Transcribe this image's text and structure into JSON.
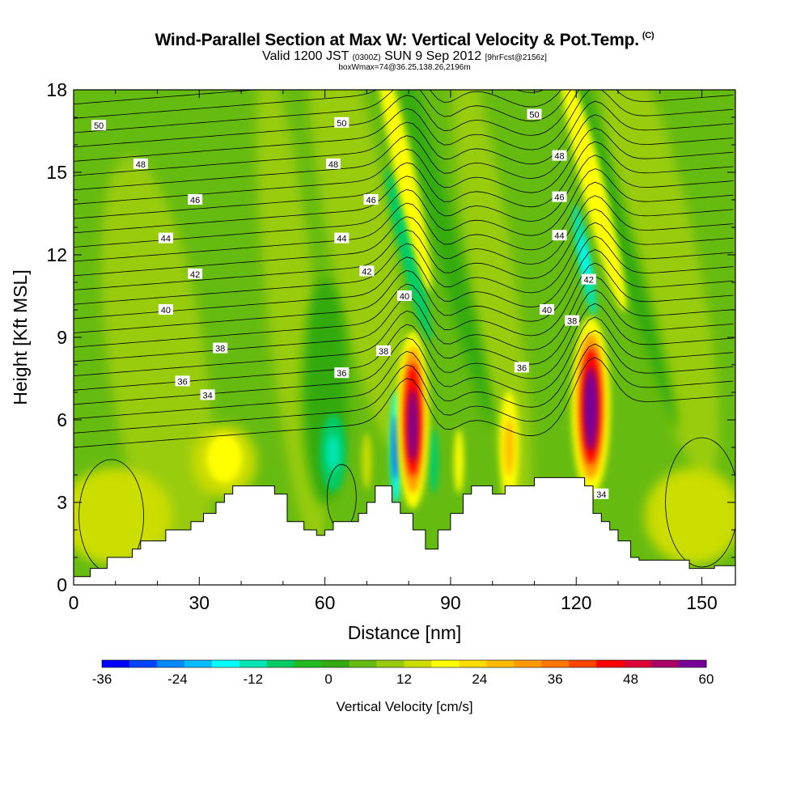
{
  "title": "Wind-Parallel Section at Max W: Vertical Velocity & Pot.Temp.",
  "title_mark": "(C)",
  "subtitle_parts": [
    "Valid 1200 JST",
    "(0300Z)",
    "SUN 9 Sep 2012",
    "[9hrFcst@2156z]"
  ],
  "subtitle2": "boxWmax=74@36.25,138.26,2196m",
  "chart_data": {
    "type": "heatmap",
    "xlabel": "Distance [nm]",
    "ylabel": "Height [Kft MSL]",
    "xlim": [
      0,
      158
    ],
    "ylim": [
      0,
      18
    ],
    "x_ticks": [
      0,
      30,
      60,
      90,
      120,
      150
    ],
    "y_ticks": [
      0,
      3,
      6,
      9,
      12,
      15,
      18
    ],
    "colorbar": {
      "label": "Vertical Velocity [cm/s]",
      "min": -36,
      "max": 60,
      "step": 4,
      "tick_labels": [
        -36,
        -24,
        -12,
        0,
        12,
        24,
        36,
        48,
        60
      ],
      "colors": [
        "#0000ff",
        "#0044ff",
        "#0088ff",
        "#00bbff",
        "#00ffff",
        "#00e6b4",
        "#00cc66",
        "#22bb22",
        "#33aa11",
        "#66bb11",
        "#99cc11",
        "#ccdd00",
        "#ffff00",
        "#ffdd00",
        "#ffbb00",
        "#ff9900",
        "#ff7700",
        "#ff4400",
        "#ff0000",
        "#dd0033",
        "#aa0066",
        "#770099"
      ]
    },
    "terrain_profile": [
      [
        0,
        0.3
      ],
      [
        4,
        0.3
      ],
      [
        4,
        0.6
      ],
      [
        8,
        0.6
      ],
      [
        8,
        1.0
      ],
      [
        14,
        1.0
      ],
      [
        14,
        1.3
      ],
      [
        16,
        1.3
      ],
      [
        16,
        1.6
      ],
      [
        22,
        1.6
      ],
      [
        22,
        2.0
      ],
      [
        28,
        2.0
      ],
      [
        28,
        2.3
      ],
      [
        31,
        2.3
      ],
      [
        31,
        2.6
      ],
      [
        34,
        2.6
      ],
      [
        34,
        3.0
      ],
      [
        36,
        3.0
      ],
      [
        36,
        3.3
      ],
      [
        38,
        3.3
      ],
      [
        38,
        3.6
      ],
      [
        48,
        3.6
      ],
      [
        48,
        3.3
      ],
      [
        51,
        3.3
      ],
      [
        51,
        2.3
      ],
      [
        55,
        2.3
      ],
      [
        55,
        2.0
      ],
      [
        58,
        2.0
      ],
      [
        58,
        1.8
      ],
      [
        60,
        1.8
      ],
      [
        60,
        2.0
      ],
      [
        62,
        2.0
      ],
      [
        62,
        2.3
      ],
      [
        68,
        2.3
      ],
      [
        68,
        2.6
      ],
      [
        70,
        2.6
      ],
      [
        70,
        3.0
      ],
      [
        72,
        3.0
      ],
      [
        72,
        3.6
      ],
      [
        76,
        3.6
      ],
      [
        76,
        3.0
      ],
      [
        78,
        3.0
      ],
      [
        78,
        2.6
      ],
      [
        81,
        2.6
      ],
      [
        81,
        2.0
      ],
      [
        84,
        2.0
      ],
      [
        84,
        1.3
      ],
      [
        87,
        1.3
      ],
      [
        87,
        2.0
      ],
      [
        90,
        2.0
      ],
      [
        90,
        2.6
      ],
      [
        93,
        2.6
      ],
      [
        93,
        3.3
      ],
      [
        95,
        3.3
      ],
      [
        95,
        3.6
      ],
      [
        100,
        3.6
      ],
      [
        100,
        3.3
      ],
      [
        103,
        3.3
      ],
      [
        103,
        3.6
      ],
      [
        110,
        3.6
      ],
      [
        110,
        3.9
      ],
      [
        122,
        3.9
      ],
      [
        122,
        3.6
      ],
      [
        124,
        3.6
      ],
      [
        124,
        2.6
      ],
      [
        126,
        2.6
      ],
      [
        126,
        2.3
      ],
      [
        128,
        2.3
      ],
      [
        128,
        2.0
      ],
      [
        130,
        2.0
      ],
      [
        130,
        1.6
      ],
      [
        133,
        1.6
      ],
      [
        133,
        1.0
      ],
      [
        135,
        1.0
      ],
      [
        135,
        0.9
      ],
      [
        147,
        0.9
      ],
      [
        147,
        0.6
      ],
      [
        153,
        0.6
      ],
      [
        153,
        0.7
      ],
      [
        158,
        0.7
      ],
      [
        158,
        0
      ]
    ],
    "theta_contour_labels": [
      {
        "x": 6,
        "y": 16.7,
        "v": "50"
      },
      {
        "x": 64,
        "y": 16.8,
        "v": "50"
      },
      {
        "x": 110,
        "y": 17.1,
        "v": "50"
      },
      {
        "x": 16,
        "y": 15.3,
        "v": "48"
      },
      {
        "x": 62,
        "y": 15.3,
        "v": "48"
      },
      {
        "x": 116,
        "y": 15.6,
        "v": "48"
      },
      {
        "x": 29,
        "y": 14.0,
        "v": "46"
      },
      {
        "x": 71,
        "y": 14.0,
        "v": "46"
      },
      {
        "x": 116,
        "y": 14.1,
        "v": "46"
      },
      {
        "x": 22,
        "y": 12.6,
        "v": "44"
      },
      {
        "x": 64,
        "y": 12.6,
        "v": "44"
      },
      {
        "x": 116,
        "y": 12.7,
        "v": "44"
      },
      {
        "x": 29,
        "y": 11.3,
        "v": "42"
      },
      {
        "x": 70,
        "y": 11.4,
        "v": "42"
      },
      {
        "x": 123,
        "y": 11.1,
        "v": "42"
      },
      {
        "x": 22,
        "y": 10.0,
        "v": "40"
      },
      {
        "x": 79,
        "y": 10.5,
        "v": "40"
      },
      {
        "x": 113,
        "y": 10.0,
        "v": "40"
      },
      {
        "x": 35,
        "y": 8.6,
        "v": "38"
      },
      {
        "x": 74,
        "y": 8.5,
        "v": "38"
      },
      {
        "x": 119,
        "y": 9.6,
        "v": "38"
      },
      {
        "x": 26,
        "y": 7.4,
        "v": "36"
      },
      {
        "x": 64,
        "y": 7.7,
        "v": "36"
      },
      {
        "x": 107,
        "y": 7.9,
        "v": "36"
      },
      {
        "x": 32,
        "y": 6.9,
        "v": "34"
      },
      {
        "x": 126,
        "y": 3.3,
        "v": "34"
      }
    ],
    "updraft_cores": [
      {
        "x": 81,
        "y": 6.0,
        "w": 52
      },
      {
        "x": 123.5,
        "y": 6.5,
        "w": 60
      }
    ],
    "downdraft_cores": [
      {
        "x": 62,
        "y": 4.8,
        "w": -16
      },
      {
        "x": 77,
        "y": 5.0,
        "w": -30
      },
      {
        "x": 122,
        "y": 11.8,
        "w": -20
      }
    ]
  }
}
